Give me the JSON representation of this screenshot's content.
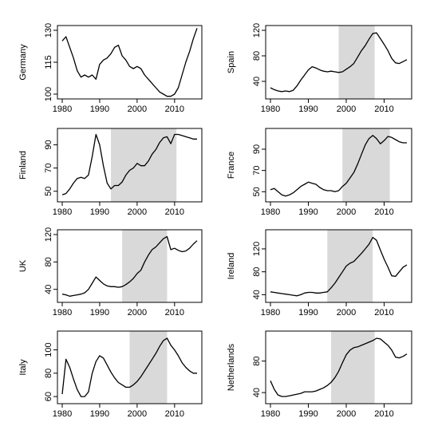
{
  "chart_data": [
    {
      "type": "line",
      "ylabel": "Germany",
      "xlim": [
        1980,
        2016
      ],
      "ylim": [
        100,
        130
      ],
      "xticks": [
        1980,
        1990,
        2000,
        2010
      ],
      "yticks": [
        100,
        115,
        130
      ],
      "shaded": null,
      "series": [
        {
          "x": [
            1980,
            1981,
            1982,
            1983,
            1984,
            1985,
            1986,
            1987,
            1988,
            1989,
            1990,
            1991,
            1992,
            1993,
            1994,
            1995,
            1996,
            1997,
            1998,
            1999,
            2000,
            2001,
            2002,
            2003,
            2004,
            2005,
            2006,
            2007,
            2008,
            2009,
            2010,
            2011,
            2012,
            2013,
            2014,
            2015,
            2016
          ],
          "y": [
            125,
            127,
            122,
            117,
            111,
            108,
            109,
            108,
            109,
            107,
            114,
            116,
            117,
            119,
            122,
            123,
            118,
            116,
            113,
            112,
            113,
            112,
            109,
            107,
            105,
            103,
            101,
            100,
            99,
            99,
            100,
            103,
            109,
            115,
            120,
            126,
            131
          ]
        }
      ]
    },
    {
      "type": "line",
      "ylabel": "Spain",
      "xlim": [
        1980,
        2016
      ],
      "ylim": [
        20,
        120
      ],
      "xticks": [
        1980,
        1990,
        2000,
        2010
      ],
      "yticks": [
        40,
        80,
        120
      ],
      "shaded": [
        1998,
        2007.5
      ],
      "series": [
        {
          "x": [
            1980,
            1981,
            1982,
            1983,
            1984,
            1985,
            1986,
            1987,
            1988,
            1989,
            1990,
            1991,
            1992,
            1993,
            1994,
            1995,
            1996,
            1997,
            1998,
            1999,
            2000,
            2001,
            2002,
            2003,
            2004,
            2005,
            2006,
            2007,
            2008,
            2009,
            2010,
            2011,
            2012,
            2013,
            2014,
            2015,
            2016
          ],
          "y": [
            30,
            27,
            25,
            24,
            25,
            24,
            26,
            33,
            42,
            50,
            58,
            63,
            61,
            58,
            56,
            55,
            56,
            55,
            54,
            55,
            59,
            63,
            68,
            78,
            88,
            96,
            106,
            115,
            116,
            107,
            98,
            88,
            76,
            69,
            68,
            71,
            74
          ]
        }
      ]
    },
    {
      "type": "line",
      "ylabel": "Finland",
      "xlim": [
        1980,
        2016
      ],
      "ylim": [
        45,
        100
      ],
      "xticks": [
        1980,
        1990,
        2000,
        2010
      ],
      "yticks": [
        50,
        70,
        90
      ],
      "shaded": [
        1993,
        2010.5
      ],
      "series": [
        {
          "x": [
            1980,
            1981,
            1982,
            1983,
            1984,
            1985,
            1986,
            1987,
            1988,
            1989,
            1990,
            1991,
            1992,
            1993,
            1994,
            1995,
            1996,
            1997,
            1998,
            1999,
            2000,
            2001,
            2002,
            2003,
            2004,
            2005,
            2006,
            2007,
            2008,
            2009,
            2010,
            2011,
            2012,
            2013,
            2014,
            2015,
            2016
          ],
          "y": [
            47,
            48,
            52,
            57,
            61,
            62,
            61,
            64,
            80,
            99,
            90,
            72,
            57,
            52,
            55,
            55,
            58,
            64,
            68,
            70,
            74,
            72,
            72,
            76,
            82,
            86,
            92,
            96,
            97,
            91,
            99,
            99,
            98,
            97,
            96,
            95,
            95
          ]
        }
      ]
    },
    {
      "type": "line",
      "ylabel": "France",
      "xlim": [
        1980,
        2016
      ],
      "ylim": [
        45,
        105
      ],
      "xticks": [
        1980,
        1990,
        2000,
        2010
      ],
      "yticks": [
        50,
        70,
        90
      ],
      "shaded": [
        1999,
        2011.5
      ],
      "series": [
        {
          "x": [
            1980,
            1981,
            1982,
            1983,
            1984,
            1985,
            1986,
            1987,
            1988,
            1989,
            1990,
            1991,
            1992,
            1993,
            1994,
            1995,
            1996,
            1997,
            1998,
            1999,
            2000,
            2001,
            2002,
            2003,
            2004,
            2005,
            2006,
            2007,
            2008,
            2009,
            2010,
            2011,
            2012,
            2013,
            2014,
            2015,
            2016
          ],
          "y": [
            52,
            53,
            50,
            47,
            46,
            47,
            49,
            52,
            55,
            57,
            59,
            58,
            57,
            54,
            52,
            51,
            51,
            50,
            51,
            55,
            58,
            63,
            68,
            76,
            85,
            94,
            100,
            103,
            100,
            95,
            98,
            102,
            101,
            99,
            97,
            96,
            96
          ]
        }
      ]
    },
    {
      "type": "line",
      "ylabel": "UK",
      "xlim": [
        1980,
        2016
      ],
      "ylim": [
        28,
        120
      ],
      "xticks": [
        1980,
        1990,
        2000,
        2010
      ],
      "yticks": [
        40,
        80,
        120
      ],
      "shaded": [
        1996,
        2008
      ],
      "series": [
        {
          "x": [
            1980,
            1981,
            1982,
            1983,
            1984,
            1985,
            1986,
            1987,
            1988,
            1989,
            1990,
            1991,
            1992,
            1993,
            1994,
            1995,
            1996,
            1997,
            1998,
            1999,
            2000,
            2001,
            2002,
            2003,
            2004,
            2005,
            2006,
            2007,
            2008,
            2009,
            2010,
            2011,
            2012,
            2013,
            2014,
            2015,
            2016
          ],
          "y": [
            33,
            32,
            30,
            31,
            32,
            33,
            35,
            40,
            49,
            58,
            53,
            48,
            45,
            44,
            44,
            43,
            44,
            47,
            51,
            56,
            63,
            68,
            80,
            90,
            98,
            102,
            108,
            114,
            117,
            98,
            100,
            97,
            95,
            96,
            100,
            106,
            111
          ]
        }
      ]
    },
    {
      "type": "line",
      "ylabel": "Ireland",
      "xlim": [
        1980,
        2016
      ],
      "ylim": [
        35,
        145
      ],
      "xticks": [
        1980,
        1990,
        2000,
        2010
      ],
      "yticks": [
        40,
        80,
        120
      ],
      "shaded": [
        1995,
        2007
      ],
      "series": [
        {
          "x": [
            1980,
            1981,
            1982,
            1983,
            1984,
            1985,
            1986,
            1987,
            1988,
            1989,
            1990,
            1991,
            1992,
            1993,
            1994,
            1995,
            1996,
            1997,
            1998,
            1999,
            2000,
            2001,
            2002,
            2003,
            2004,
            2005,
            2006,
            2007,
            2008,
            2009,
            2010,
            2011,
            2012,
            2013,
            2014,
            2015,
            2016
          ],
          "y": [
            45,
            44,
            43,
            42,
            41,
            40,
            39,
            38,
            40,
            43,
            44,
            44,
            43,
            43,
            44,
            45,
            52,
            60,
            70,
            80,
            90,
            95,
            98,
            105,
            112,
            120,
            128,
            140,
            135,
            118,
            102,
            88,
            73,
            72,
            80,
            88,
            92
          ]
        }
      ]
    },
    {
      "type": "line",
      "ylabel": "Italy",
      "xlim": [
        1980,
        2016
      ],
      "ylim": [
        58,
        112
      ],
      "xticks": [
        1980,
        1990,
        2000,
        2010
      ],
      "yticks": [
        60,
        80,
        100
      ],
      "shaded": [
        1998,
        2008
      ],
      "series": [
        {
          "x": [
            1980,
            1981,
            1982,
            1983,
            1984,
            1985,
            1986,
            1987,
            1988,
            1989,
            1990,
            1991,
            1992,
            1993,
            1994,
            1995,
            1996,
            1997,
            1998,
            1999,
            2000,
            2001,
            2002,
            2003,
            2004,
            2005,
            2006,
            2007,
            2008,
            2009,
            2010,
            2011,
            2012,
            2013,
            2014,
            2015,
            2016
          ],
          "y": [
            62,
            92,
            85,
            75,
            66,
            60,
            60,
            64,
            80,
            90,
            95,
            93,
            87,
            81,
            76,
            72,
            70,
            68,
            68,
            70,
            73,
            77,
            82,
            87,
            92,
            97,
            103,
            108,
            110,
            104,
            100,
            95,
            89,
            85,
            82,
            80,
            80
          ]
        }
      ]
    },
    {
      "type": "line",
      "ylabel": "Netherlands",
      "xlim": [
        1980,
        2016
      ],
      "ylim": [
        32,
        112
      ],
      "xticks": [
        1980,
        1990,
        2000,
        2010
      ],
      "yticks": [
        40,
        80
      ],
      "shaded": [
        1996,
        2007.5
      ],
      "series": [
        {
          "x": [
            1980,
            1981,
            1982,
            1983,
            1984,
            1985,
            1986,
            1987,
            1988,
            1989,
            1990,
            1991,
            1992,
            1993,
            1994,
            1995,
            1996,
            1997,
            1998,
            1999,
            2000,
            2001,
            2002,
            2003,
            2004,
            2005,
            2006,
            2007,
            2008,
            2009,
            2010,
            2011,
            2012,
            2013,
            2014,
            2015,
            2016
          ],
          "y": [
            55,
            44,
            37,
            35,
            35,
            36,
            37,
            38,
            39,
            41,
            41,
            41,
            42,
            44,
            46,
            49,
            53,
            59,
            67,
            78,
            88,
            94,
            97,
            98,
            100,
            102,
            104,
            106,
            109,
            108,
            104,
            100,
            94,
            85,
            84,
            86,
            89
          ]
        }
      ]
    }
  ]
}
